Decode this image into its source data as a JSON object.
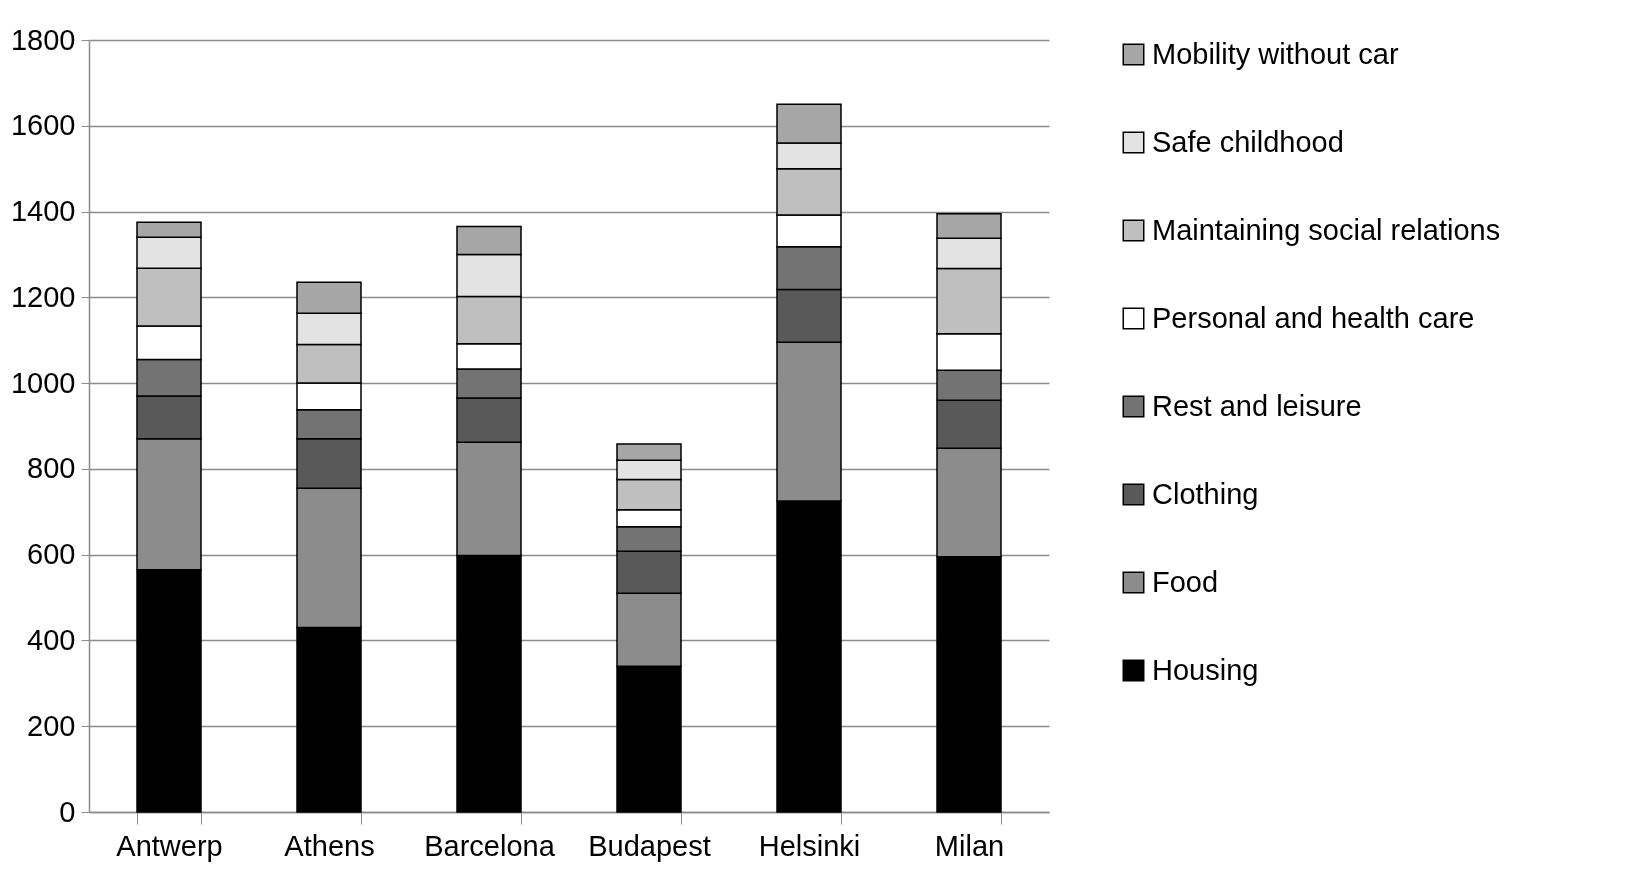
{
  "chart_data": {
    "type": "bar",
    "stacked": true,
    "categories": [
      "Antwerp",
      "Athens",
      "Barcelona",
      "Budapest",
      "Helsinki",
      "Milan"
    ],
    "series": [
      {
        "name": "Housing",
        "color": "#000000",
        "values": [
          565,
          430,
          598,
          340,
          725,
          595
        ]
      },
      {
        "name": "Food",
        "color": "#8c8c8c",
        "values": [
          305,
          325,
          264,
          170,
          370,
          253
        ]
      },
      {
        "name": "Clothing",
        "color": "#595959",
        "values": [
          100,
          115,
          103,
          98,
          123,
          112
        ]
      },
      {
        "name": "Rest and leisure",
        "color": "#737373",
        "values": [
          85,
          68,
          68,
          57,
          100,
          70
        ]
      },
      {
        "name": "Personal and health care",
        "color": "#ffffff",
        "values": [
          78,
          62,
          59,
          40,
          74,
          85
        ]
      },
      {
        "name": "Maintaining social relations",
        "color": "#bfbfbf",
        "values": [
          135,
          90,
          110,
          70,
          108,
          152
        ]
      },
      {
        "name": "Safe childhood",
        "color": "#e3e3e3",
        "values": [
          72,
          73,
          98,
          45,
          60,
          71
        ]
      },
      {
        "name": "Mobility without car",
        "color": "#a6a6a6",
        "values": [
          35,
          72,
          65,
          38,
          90,
          57
        ]
      }
    ],
    "ylim": [
      0,
      1800
    ],
    "yticks": [
      0,
      200,
      400,
      600,
      800,
      1000,
      1200,
      1400,
      1600,
      1800
    ],
    "grid": "y",
    "legend": "right"
  }
}
